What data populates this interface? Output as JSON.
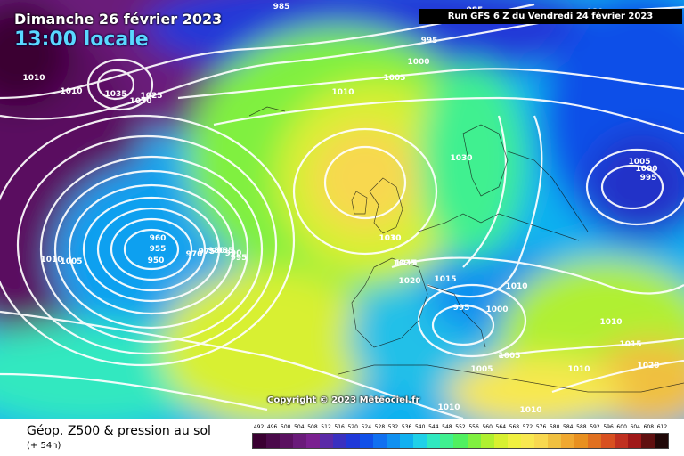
{
  "header": {
    "date_title": "Dimanche 26 février 2023",
    "time_title": "13:00 locale",
    "run_info": "Run GFS 6 Z du Vendredi 24 février 2023"
  },
  "copyright": "Copyright © 2023 Meteociel.fr",
  "footer": {
    "title": "Géop. Z500 & pression au sol",
    "subtitle": "(+ 54h)"
  },
  "legend": {
    "labels": [
      "492",
      "496",
      "500",
      "504",
      "508",
      "512",
      "516",
      "520",
      "524",
      "528",
      "532",
      "536",
      "540",
      "544",
      "548",
      "552",
      "556",
      "560",
      "564",
      "568",
      "572",
      "576",
      "580",
      "584",
      "588",
      "592",
      "596",
      "600",
      "604",
      "608",
      "612"
    ],
    "colors": [
      "#3a0032",
      "#4a0a4a",
      "#5a1060",
      "#6a1a7a",
      "#7a2090",
      "#5a2aa8",
      "#3a30c0",
      "#2038d8",
      "#1050e8",
      "#1070f0",
      "#1090f0",
      "#10b0f0",
      "#20d0e8",
      "#30e8c0",
      "#40f090",
      "#50f060",
      "#80f040",
      "#b0f030",
      "#d8f030",
      "#f0f040",
      "#f8e850",
      "#f8d850",
      "#f0c040",
      "#f0a830",
      "#e89020",
      "#e07020",
      "#d85020",
      "#c03020",
      "#a01818",
      "#601010",
      "#200808"
    ]
  },
  "isobar_labels": [
    {
      "text": "985"
    },
    {
      "text": "985"
    },
    {
      "text": "980"
    },
    {
      "text": "995"
    },
    {
      "text": "1000"
    },
    {
      "text": "1005"
    },
    {
      "text": "1010"
    },
    {
      "text": "1010"
    },
    {
      "text": "1010"
    },
    {
      "text": "1035"
    },
    {
      "text": "1030"
    },
    {
      "text": "1025"
    },
    {
      "text": "1030"
    },
    {
      "text": "1005"
    },
    {
      "text": "1000"
    },
    {
      "text": "995"
    },
    {
      "text": "960"
    },
    {
      "text": "955"
    },
    {
      "text": "950"
    },
    {
      "text": "970"
    },
    {
      "text": "975"
    },
    {
      "text": "980"
    },
    {
      "text": "985"
    },
    {
      "text": "990"
    },
    {
      "text": "995"
    },
    {
      "text": "1010"
    },
    {
      "text": "1005"
    },
    {
      "text": "1010"
    },
    {
      "text": "1015"
    },
    {
      "text": "1030"
    },
    {
      "text": "1025"
    },
    {
      "text": "1020"
    },
    {
      "text": "1015"
    },
    {
      "text": "1010"
    },
    {
      "text": "995"
    },
    {
      "text": "1000"
    },
    {
      "text": "1005"
    },
    {
      "text": "1005"
    },
    {
      "text": "1010"
    },
    {
      "text": "1015"
    },
    {
      "text": "1010"
    },
    {
      "text": "1020"
    },
    {
      "text": "1015"
    },
    {
      "text": "1010"
    },
    {
      "text": "1010"
    }
  ]
}
